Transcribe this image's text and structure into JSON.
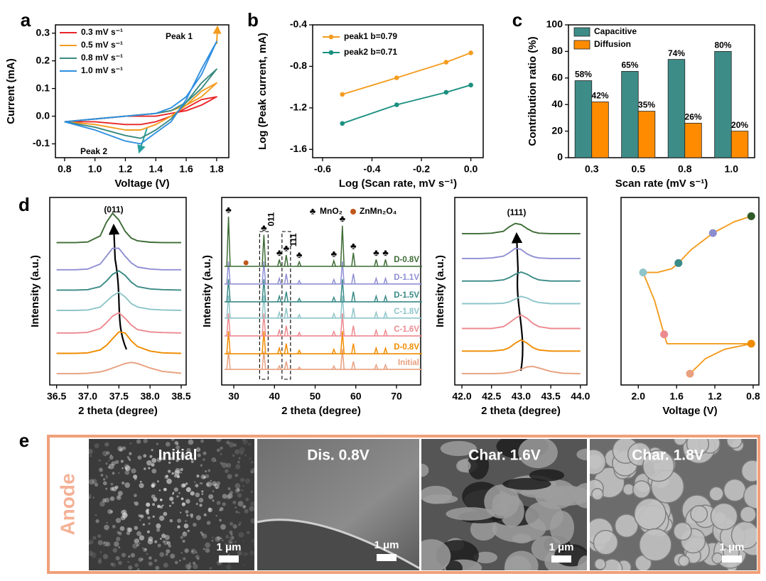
{
  "panel_labels": [
    "a",
    "b",
    "c",
    "d",
    "e"
  ],
  "chart_data": [
    {
      "type": "line",
      "xlabel": "Voltage (V)",
      "ylabel": "Current (mA)",
      "xlim": [
        0.74,
        1.88
      ],
      "xticks": [
        0.8,
        {
          "value": 1,
          "label": "1.0"
        },
        1.2,
        1.4,
        1.6,
        1.8
      ],
      "ylim": [
        -0.15,
        0.33
      ],
      "yticks": [
        -0.1,
        {
          "value": 0,
          "label": "0.0"
        },
        0.1,
        0.2,
        0.3
      ],
      "legend": "upper left",
      "annotations": [
        "Peak 1",
        "Peak 2"
      ],
      "series": [
        {
          "name": "0.3 mV s⁻¹",
          "color": "#e8262a",
          "x": [
            0.8,
            1.0,
            1.2,
            1.4,
            1.5,
            1.6,
            1.7,
            1.8,
            1.7,
            1.6,
            1.5,
            1.4,
            1.3,
            1.2,
            1.0,
            0.8
          ],
          "values": [
            -0.02,
            -0.01,
            0.0,
            0.0,
            0.01,
            0.02,
            0.04,
            0.07,
            0.06,
            0.03,
            0.0,
            -0.02,
            -0.03,
            -0.03,
            -0.02,
            -0.02
          ]
        },
        {
          "name": "0.5 mV s⁻¹",
          "color": "#f39c1f",
          "x": [
            0.8,
            1.0,
            1.2,
            1.4,
            1.5,
            1.6,
            1.7,
            1.8,
            1.7,
            1.6,
            1.5,
            1.4,
            1.3,
            1.2,
            1.0,
            0.8
          ],
          "values": [
            -0.02,
            -0.01,
            0.0,
            0.01,
            0.02,
            0.04,
            0.07,
            0.12,
            0.09,
            0.04,
            0.0,
            -0.03,
            -0.05,
            -0.05,
            -0.03,
            -0.02
          ]
        },
        {
          "name": "0.8 mV s⁻¹",
          "color": "#3a8a80",
          "x": [
            0.8,
            1.0,
            1.2,
            1.4,
            1.5,
            1.6,
            1.7,
            1.8,
            1.7,
            1.6,
            1.5,
            1.4,
            1.3,
            1.2,
            1.0,
            0.8
          ],
          "values": [
            -0.02,
            -0.01,
            0.0,
            0.01,
            0.02,
            0.05,
            0.1,
            0.17,
            0.12,
            0.05,
            -0.01,
            -0.05,
            -0.08,
            -0.07,
            -0.04,
            -0.02
          ]
        },
        {
          "name": "1.0 mV s⁻¹",
          "color": "#2f8fe0",
          "x": [
            0.8,
            1.0,
            1.2,
            1.4,
            1.5,
            1.6,
            1.7,
            1.8,
            1.7,
            1.6,
            1.5,
            1.4,
            1.3,
            1.2,
            1.0,
            0.8
          ],
          "values": [
            -0.02,
            -0.01,
            0.0,
            0.01,
            0.03,
            0.07,
            0.15,
            0.27,
            0.17,
            0.06,
            -0.02,
            -0.06,
            -0.1,
            -0.09,
            -0.05,
            -0.02
          ]
        }
      ]
    },
    {
      "type": "line",
      "xlabel": "Log (Scan rate, mV s⁻¹)",
      "ylabel": "Log (Peak current, mA)",
      "x": [
        -0.52,
        -0.3,
        -0.1,
        0
      ],
      "xlim": [
        -0.64,
        0.05
      ],
      "xticks": [
        -0.6,
        -0.4,
        -0.2,
        {
          "value": 0,
          "label": "0.0"
        }
      ],
      "ylim": [
        -1.68,
        -0.4
      ],
      "yticks": [
        -1.6,
        -1.2,
        -0.8,
        -0.4
      ],
      "markers": true,
      "legend": "upper left",
      "series": [
        {
          "name": "peak1 b=0.79",
          "color": "#f39c1f",
          "values": [
            -1.07,
            -0.91,
            -0.76,
            -0.67
          ]
        },
        {
          "name": "peak2 b=0.71",
          "color": "#1a9080",
          "values": [
            -1.35,
            -1.17,
            -1.05,
            -0.98
          ]
        }
      ]
    },
    {
      "type": "bar",
      "xlabel": "Scan rate (mV s⁻¹)",
      "ylabel": "Contribution ratio (%)",
      "categories": [
        "0.3",
        "0.5",
        "0.8",
        "1.0"
      ],
      "ylim": [
        0,
        100
      ],
      "yticks": [
        0,
        20,
        40,
        60,
        80,
        100
      ],
      "legend": "upper left",
      "series": [
        {
          "name": "Capacitive",
          "color": "#3d8c87",
          "values": [
            58,
            65,
            74,
            80
          ],
          "value_labels": [
            "58%",
            "65%",
            "74%",
            "80%"
          ]
        },
        {
          "name": "Diffusion",
          "color": "#ff8c00",
          "values": [
            42,
            35,
            26,
            20
          ],
          "value_labels": [
            "42%",
            "35%",
            "26%",
            "20%"
          ]
        }
      ]
    },
    {
      "type": "line",
      "xlabel": "2 theta (degree)",
      "ylabel": "Intensity (a.u.)",
      "annotations": [
        "(011)"
      ],
      "x": [
        36.5,
        36.8,
        37.0,
        37.2,
        37.3,
        37.4,
        37.5,
        37.6,
        37.7,
        37.8,
        38.0,
        38.2,
        38.5
      ],
      "xlim": [
        36.39,
        38.58
      ],
      "xticks": [
        36.5,
        {
          "value": 37,
          "label": "37.0"
        },
        37.5,
        {
          "value": 38,
          "label": "38.0"
        },
        38.5
      ],
      "ylim": [
        0,
        8.3
      ],
      "series": [
        {
          "color": "#e8a07f",
          "values": [
            0.5,
            0.5,
            0.52,
            0.58,
            0.65,
            0.75,
            0.85,
            0.95,
            1.0,
            0.95,
            0.75,
            0.6,
            0.52
          ]
        },
        {
          "color": "#f08c00",
          "values": [
            1.4,
            1.4,
            1.42,
            1.55,
            1.75,
            2.05,
            2.35,
            2.3,
            1.95,
            1.7,
            1.5,
            1.42,
            1.4
          ]
        },
        {
          "color": "#ec8a90",
          "values": [
            2.3,
            2.3,
            2.33,
            2.5,
            2.75,
            3.05,
            3.2,
            2.95,
            2.65,
            2.45,
            2.35,
            2.32,
            2.3
          ]
        },
        {
          "color": "#8ec5c9",
          "values": [
            3.3,
            3.3,
            3.32,
            3.45,
            3.7,
            3.95,
            4.1,
            3.9,
            3.6,
            3.45,
            3.35,
            3.32,
            3.3
          ]
        },
        {
          "color": "#3a8a86",
          "values": [
            4.2,
            4.2,
            4.22,
            4.35,
            4.6,
            4.9,
            5.05,
            4.85,
            4.55,
            4.35,
            4.25,
            4.22,
            4.2
          ]
        },
        {
          "color": "#8f8fd3",
          "values": [
            5.1,
            5.1,
            5.13,
            5.35,
            5.7,
            6.05,
            6.05,
            5.7,
            5.4,
            5.22,
            5.13,
            5.1,
            5.1
          ]
        },
        {
          "color": "#3d6b35",
          "values": [
            6.3,
            6.3,
            6.33,
            6.6,
            7.2,
            7.6,
            7.3,
            6.8,
            6.5,
            6.38,
            6.32,
            6.3,
            6.3
          ]
        }
      ]
    },
    {
      "type": "stick",
      "xlabel": "2 theta (degree)",
      "ylabel": "Intensity (a.u.)",
      "xlim": [
        27.03,
        75.94
      ],
      "xticks": [
        30,
        40,
        50,
        60,
        70
      ],
      "ylim": [
        0,
        8.3
      ],
      "peak_positions": [
        28.7,
        37.4,
        41.2,
        42.9,
        46.1,
        54.6,
        56.7,
        59.4,
        65.0,
        67.3
      ],
      "impurity_peak": 33,
      "peak_labels": [
        "011",
        "111"
      ],
      "markers": {
        "symbol": "♣",
        "names": [
          "MnO₂",
          "ZnMn₂O₄"
        ],
        "colors": [
          "#000000",
          "#c0571b"
        ]
      },
      "series": [
        {
          "name": "Initial",
          "color": "#e8a07f",
          "baseline": 0.69,
          "values": [
            0.8,
            0.8,
            0.15,
            0.35,
            0.1,
            0.15,
            0.9,
            0.35,
            0.2,
            0.2
          ]
        },
        {
          "name": "D-0.8V",
          "color": "#f08c00",
          "baseline": 1.38,
          "values": [
            1.0,
            1.0,
            0.25,
            0.45,
            0.15,
            0.2,
            1.0,
            0.45,
            0.25,
            0.25
          ]
        },
        {
          "name": "C-1.6V",
          "color": "#ec8a90",
          "baseline": 2.17,
          "values": [
            1.0,
            1.0,
            0.25,
            0.45,
            0.15,
            0.2,
            1.0,
            0.45,
            0.25,
            0.25
          ]
        },
        {
          "name": "C-1.8V",
          "color": "#8ec5c9",
          "baseline": 2.96,
          "values": [
            1.0,
            1.0,
            0.25,
            0.45,
            0.15,
            0.2,
            1.0,
            0.45,
            0.25,
            0.25
          ]
        },
        {
          "name": "D-1.5V",
          "color": "#3a8a86",
          "baseline": 3.68,
          "values": [
            1.0,
            1.0,
            0.25,
            0.45,
            0.15,
            0.2,
            1.0,
            0.45,
            0.25,
            0.25
          ]
        },
        {
          "name": "D-1.1V",
          "color": "#8f8fd3",
          "baseline": 4.47,
          "values": [
            1.0,
            1.0,
            0.25,
            0.45,
            0.15,
            0.2,
            1.0,
            0.45,
            0.25,
            0.25
          ]
        },
        {
          "name": "D-0.8V",
          "color": "#3d6b35",
          "baseline": 5.25,
          "values": [
            2.2,
            1.4,
            0.3,
            0.5,
            0.2,
            0.25,
            1.8,
            0.6,
            0.3,
            0.3
          ]
        }
      ]
    },
    {
      "type": "line",
      "xlabel": "2 theta (degree)",
      "ylabel": "Intensity (a.u.)",
      "annotations": [
        "(111)"
      ],
      "x": [
        42.0,
        42.3,
        42.5,
        42.7,
        42.8,
        42.9,
        43.0,
        43.1,
        43.2,
        43.3,
        43.5,
        43.7,
        44.0
      ],
      "xlim": [
        41.88,
        44.11
      ],
      "xticks": [
        {
          "value": 42,
          "label": "42.0"
        },
        42.5,
        {
          "value": 43,
          "label": "43.0"
        },
        43.5,
        {
          "value": 44,
          "label": "44.0"
        }
      ],
      "ylim": [
        0,
        8.3
      ],
      "series": [
        {
          "color": "#e8a07f",
          "values": [
            0.5,
            0.5,
            0.5,
            0.52,
            0.55,
            0.6,
            0.7,
            0.8,
            0.82,
            0.75,
            0.6,
            0.52,
            0.5
          ]
        },
        {
          "color": "#f08c00",
          "values": [
            1.5,
            1.5,
            1.5,
            1.55,
            1.65,
            1.85,
            2.0,
            1.85,
            1.65,
            1.55,
            1.5,
            1.5,
            1.5
          ]
        },
        {
          "color": "#ec8a90",
          "values": [
            2.5,
            2.5,
            2.5,
            2.58,
            2.75,
            2.95,
            3.1,
            2.95,
            2.72,
            2.58,
            2.5,
            2.5,
            2.5
          ]
        },
        {
          "color": "#8ec5c9",
          "values": [
            3.6,
            3.6,
            3.6,
            3.62,
            3.68,
            3.8,
            3.92,
            3.85,
            3.72,
            3.65,
            3.6,
            3.6,
            3.6
          ]
        },
        {
          "color": "#3a8a86",
          "values": [
            4.6,
            4.6,
            4.6,
            4.65,
            4.75,
            4.9,
            5.0,
            4.9,
            4.75,
            4.65,
            4.6,
            4.6,
            4.6
          ]
        },
        {
          "color": "#8f8fd3",
          "values": [
            5.6,
            5.6,
            5.62,
            5.7,
            5.85,
            6.05,
            6.0,
            5.8,
            5.68,
            5.62,
            5.6,
            5.6,
            5.6
          ]
        },
        {
          "color": "#3d6b35",
          "values": [
            6.7,
            6.7,
            6.72,
            6.8,
            7.0,
            7.15,
            7.1,
            6.92,
            6.78,
            6.72,
            6.7,
            6.7,
            6.7
          ]
        }
      ]
    },
    {
      "type": "line",
      "xlabel": "Voltage (V)",
      "xlim": [
        2.18,
        0.74
      ],
      "xticks": [
        {
          "value": 2,
          "label": "2.0"
        },
        1.6,
        1.2,
        0.8
      ],
      "ylim": [
        0,
        1
      ],
      "series": [
        {
          "color": "#f39c1f",
          "x": [
            1.46,
            1.3,
            1.1,
            0.82,
            1.4,
            1.7,
            1.73,
            1.83,
            1.95,
            1.8,
            1.65,
            1.58,
            1.45,
            1.22,
            1.0,
            0.82
          ],
          "values": [
            0.06,
            0.14,
            0.19,
            0.22,
            0.22,
            0.22,
            0.27,
            0.45,
            0.6,
            0.6,
            0.62,
            0.65,
            0.72,
            0.81,
            0.87,
            0.9
          ]
        },
        {
          "style": "points",
          "x": [
            1.46,
            0.82,
            1.73,
            1.95,
            1.58,
            1.22,
            0.82
          ],
          "values": [
            0.06,
            0.22,
            0.27,
            0.6,
            0.65,
            0.81,
            0.9
          ],
          "colors": [
            "#e8a07f",
            "#f08c00",
            "#ec8a90",
            "#8ec5c9",
            "#3a8a86",
            "#8d8dd0",
            "#2f5a28"
          ]
        }
      ]
    }
  ],
  "images": {
    "side_label": "Anode",
    "panels": [
      {
        "label": "Initial",
        "scale_bar": "1 μm"
      },
      {
        "label": "Dis. 0.8V",
        "scale_bar": "1 μm"
      },
      {
        "label": "Char. 1.6V",
        "scale_bar": "1 μm"
      },
      {
        "label": "Char. 1.8V",
        "scale_bar": "1 μm"
      }
    ]
  }
}
